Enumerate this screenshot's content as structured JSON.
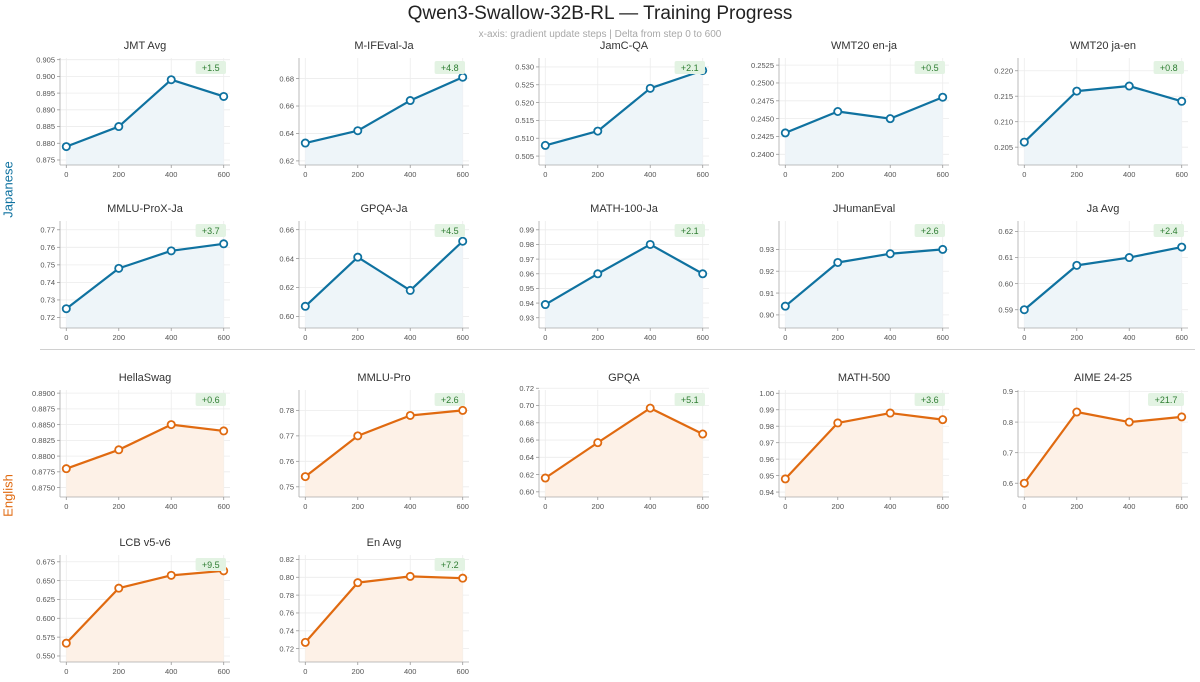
{
  "title": "Qwen3-Swallow-32B-RL  —  Training Progress",
  "subtitle": "x-axis: gradient update steps  |  Delta from step 0 to 600",
  "sections": {
    "japanese": {
      "label": "Japanese",
      "color": "#0f72a0"
    },
    "english": {
      "label": "English",
      "color": "#e06a10"
    }
  },
  "colors": {
    "ja_line": "#0f72a0",
    "ja_fill": "#eef5f9",
    "en_line": "#e06a10",
    "en_fill": "#fdf1e7",
    "delta_bg": "#e3f3e3",
    "delta_text": "#2e7d32",
    "grid": "#ececec"
  },
  "chart_data": [
    {
      "type": "line",
      "group": "ja",
      "title": "JMT Avg",
      "x": [
        0,
        200,
        400,
        600
      ],
      "values": [
        0.879,
        0.885,
        0.899,
        0.894
      ],
      "ylim": [
        0.8735,
        0.9055
      ],
      "yticks": [
        "0.875",
        "0.880",
        "0.885",
        "0.890",
        "0.895",
        "0.900",
        "0.905"
      ],
      "xticks": [
        "0",
        "200",
        "400",
        "600"
      ],
      "delta": "+1.5"
    },
    {
      "type": "line",
      "group": "ja",
      "title": "M-IFEval-Ja",
      "x": [
        0,
        200,
        400,
        600
      ],
      "values": [
        0.633,
        0.642,
        0.664,
        0.681
      ],
      "ylim": [
        0.617,
        0.695
      ],
      "yticks": [
        "0.62",
        "0.64",
        "0.66",
        "0.68"
      ],
      "xticks": [
        "0",
        "200",
        "400",
        "600"
      ],
      "delta": "+4.8"
    },
    {
      "type": "line",
      "group": "ja",
      "title": "JamC-QA",
      "x": [
        0,
        200,
        400,
        600
      ],
      "values": [
        0.508,
        0.512,
        0.524,
        0.529
      ],
      "ylim": [
        0.5025,
        0.5325
      ],
      "yticks": [
        "0.505",
        "0.510",
        "0.515",
        "0.520",
        "0.525",
        "0.530"
      ],
      "xticks": [
        "0",
        "200",
        "400",
        "600"
      ],
      "delta": "+2.1"
    },
    {
      "type": "line",
      "group": "ja",
      "title": "WMT20 en-ja",
      "x": [
        0,
        200,
        400,
        600
      ],
      "values": [
        0.243,
        0.246,
        0.245,
        0.248
      ],
      "ylim": [
        0.2385,
        0.2535
      ],
      "yticks": [
        "0.2400",
        "0.2425",
        "0.2450",
        "0.2475",
        "0.2500",
        "0.2525"
      ],
      "xticks": [
        "0",
        "200",
        "400",
        "600"
      ],
      "delta": "+0.5"
    },
    {
      "type": "line",
      "group": "ja",
      "title": "WMT20 ja-en",
      "x": [
        0,
        200,
        400,
        600
      ],
      "values": [
        0.206,
        0.216,
        0.217,
        0.214
      ],
      "ylim": [
        0.2015,
        0.2225
      ],
      "yticks": [
        "0.205",
        "0.210",
        "0.215",
        "0.220"
      ],
      "xticks": [
        "0",
        "200",
        "400",
        "600"
      ],
      "delta": "+0.8"
    },
    {
      "type": "line",
      "group": "ja",
      "title": "MMLU-ProX-Ja",
      "x": [
        0,
        200,
        400,
        600
      ],
      "values": [
        0.725,
        0.748,
        0.758,
        0.762
      ],
      "ylim": [
        0.714,
        0.775
      ],
      "yticks": [
        "0.72",
        "0.73",
        "0.74",
        "0.75",
        "0.76",
        "0.77"
      ],
      "xticks": [
        "0",
        "200",
        "400",
        "600"
      ],
      "delta": "+3.7"
    },
    {
      "type": "line",
      "group": "ja",
      "title": "GPQA-Ja",
      "x": [
        0,
        200,
        400,
        600
      ],
      "values": [
        0.607,
        0.641,
        0.618,
        0.652
      ],
      "ylim": [
        0.592,
        0.666
      ],
      "yticks": [
        "0.60",
        "0.62",
        "0.64",
        "0.66"
      ],
      "xticks": [
        "0",
        "200",
        "400",
        "600"
      ],
      "delta": "+4.5"
    },
    {
      "type": "line",
      "group": "ja",
      "title": "MATH-100-Ja",
      "x": [
        0,
        200,
        400,
        600
      ],
      "values": [
        0.939,
        0.96,
        0.98,
        0.96
      ],
      "ylim": [
        0.923,
        0.996
      ],
      "yticks": [
        "0.93",
        "0.94",
        "0.95",
        "0.96",
        "0.97",
        "0.98",
        "0.99"
      ],
      "xticks": [
        "0",
        "200",
        "400",
        "600"
      ],
      "delta": "+2.1"
    },
    {
      "type": "line",
      "group": "ja",
      "title": "JHumanEval",
      "x": [
        0,
        200,
        400,
        600
      ],
      "values": [
        0.904,
        0.924,
        0.928,
        0.93
      ],
      "ylim": [
        0.894,
        0.943
      ],
      "yticks": [
        "0.90",
        "0.91",
        "0.92",
        "0.93"
      ],
      "xticks": [
        "0",
        "200",
        "400",
        "600"
      ],
      "delta": "+2.6"
    },
    {
      "type": "line",
      "group": "ja",
      "title": "Ja Avg",
      "x": [
        0,
        200,
        400,
        600
      ],
      "values": [
        0.59,
        0.607,
        0.61,
        0.614
      ],
      "ylim": [
        0.583,
        0.624
      ],
      "yticks": [
        "0.59",
        "0.60",
        "0.61",
        "0.62"
      ],
      "xticks": [
        "0",
        "200",
        "400",
        "600"
      ],
      "delta": "+2.4"
    },
    {
      "type": "line",
      "group": "en",
      "title": "HellaSwag",
      "x": [
        0,
        200,
        400,
        600
      ],
      "values": [
        0.878,
        0.881,
        0.885,
        0.884
      ],
      "ylim": [
        0.8735,
        0.8905
      ],
      "yticks": [
        "0.8750",
        "0.8775",
        "0.8800",
        "0.8825",
        "0.8850",
        "0.8875",
        "0.8900"
      ],
      "xticks": [
        "0",
        "200",
        "400",
        "600"
      ],
      "delta": "+0.6"
    },
    {
      "type": "line",
      "group": "en",
      "title": "MMLU-Pro",
      "x": [
        0,
        200,
        400,
        600
      ],
      "values": [
        0.754,
        0.77,
        0.778,
        0.78
      ],
      "ylim": [
        0.746,
        0.788
      ],
      "yticks": [
        "0.75",
        "0.76",
        "0.77",
        "0.78"
      ],
      "xticks": [
        "0",
        "200",
        "400",
        "600"
      ],
      "delta": "+2.6"
    },
    {
      "type": "line",
      "group": "en",
      "title": "GPQA",
      "x": [
        0,
        200,
        400,
        600
      ],
      "values": [
        0.616,
        0.657,
        0.697,
        0.667
      ],
      "ylim": [
        0.594,
        0.718
      ],
      "yticks": [
        "0.60",
        "0.62",
        "0.64",
        "0.66",
        "0.68",
        "0.70",
        "0.72"
      ],
      "xticks": [
        "0",
        "200",
        "400",
        "600"
      ],
      "delta": "+5.1"
    },
    {
      "type": "line",
      "group": "en",
      "title": "MATH-500",
      "x": [
        0,
        200,
        400,
        600
      ],
      "values": [
        0.948,
        0.982,
        0.988,
        0.984
      ],
      "ylim": [
        0.937,
        1.002
      ],
      "yticks": [
        "0.94",
        "0.95",
        "0.96",
        "0.97",
        "0.98",
        "0.99",
        "1.00"
      ],
      "xticks": [
        "0",
        "200",
        "400",
        "600"
      ],
      "delta": "+3.6"
    },
    {
      "type": "line",
      "group": "en",
      "title": "AIME 24-25",
      "x": [
        0,
        200,
        400,
        600
      ],
      "values": [
        0.6,
        0.833,
        0.8,
        0.817
      ],
      "ylim": [
        0.555,
        0.905
      ],
      "yticks": [
        "0.6",
        "0.7",
        "0.8",
        "0.9"
      ],
      "xticks": [
        "0",
        "200",
        "400",
        "600"
      ],
      "delta": "+21.7"
    },
    {
      "type": "line",
      "group": "en",
      "title": "LCB v5-v6",
      "x": [
        0,
        200,
        400,
        600
      ],
      "values": [
        0.567,
        0.64,
        0.657,
        0.663
      ],
      "ylim": [
        0.542,
        0.684
      ],
      "yticks": [
        "0.550",
        "0.575",
        "0.600",
        "0.625",
        "0.650",
        "0.675"
      ],
      "xticks": [
        "0",
        "200",
        "400",
        "600"
      ],
      "delta": "+9.5"
    },
    {
      "type": "line",
      "group": "en",
      "title": "En Avg",
      "x": [
        0,
        200,
        400,
        600
      ],
      "values": [
        0.727,
        0.794,
        0.801,
        0.799
      ],
      "ylim": [
        0.705,
        0.825
      ],
      "yticks": [
        "0.72",
        "0.74",
        "0.76",
        "0.78",
        "0.80",
        "0.82"
      ],
      "xticks": [
        "0",
        "200",
        "400",
        "600"
      ],
      "delta": "+7.2"
    }
  ]
}
